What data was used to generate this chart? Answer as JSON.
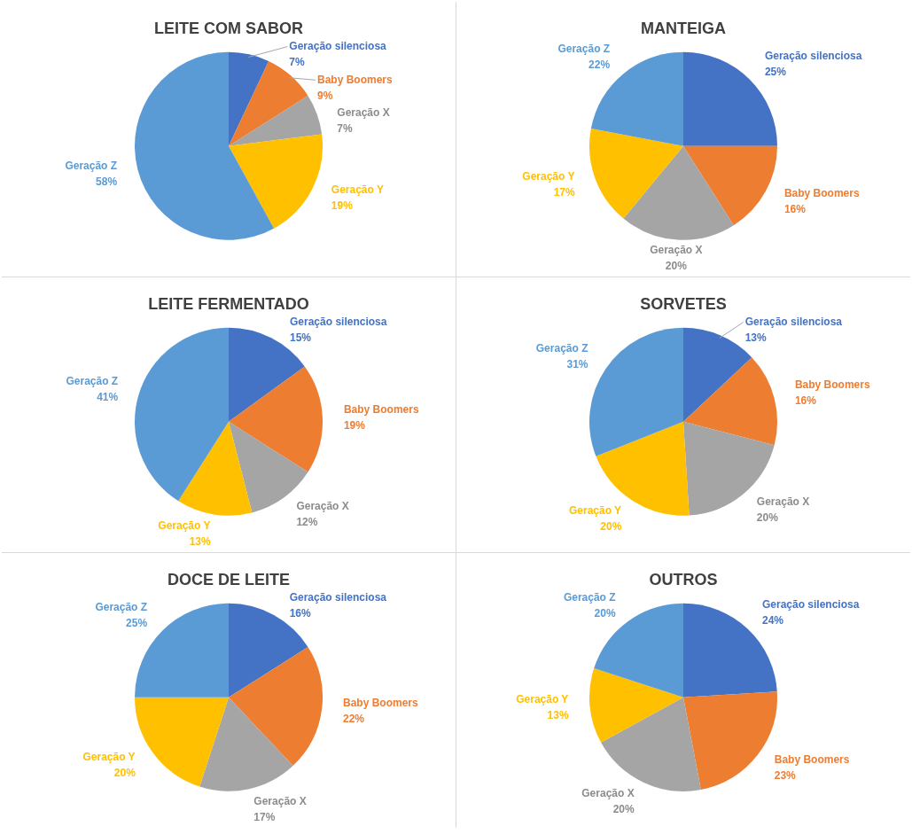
{
  "chart_data": [
    {
      "type": "pie",
      "title": "LEITE COM SABOR",
      "categories": [
        "Geração silenciosa",
        "Baby Boomers",
        "Geração X",
        "Geração Y",
        "Geração Z"
      ],
      "values": [
        7,
        9,
        7,
        19,
        58
      ],
      "value_labels": [
        "7%",
        "9%",
        "7%",
        "19%",
        "58%"
      ],
      "colors": [
        "#4472c4",
        "#ed7d31",
        "#a5a5a5",
        "#ffc000",
        "#5b9bd5"
      ],
      "legend": false
    },
    {
      "type": "pie",
      "title": "MANTEIGA",
      "categories": [
        "Geração silenciosa",
        "Baby Boomers",
        "Geração X",
        "Geração Y",
        "Geração Z"
      ],
      "values": [
        25,
        16,
        20,
        17,
        22
      ],
      "value_labels": [
        "25%",
        "16%",
        "20%",
        "17%",
        "22%"
      ],
      "colors": [
        "#4472c4",
        "#ed7d31",
        "#a5a5a5",
        "#ffc000",
        "#5b9bd5"
      ],
      "legend": false
    },
    {
      "type": "pie",
      "title": "LEITE FERMENTADO",
      "categories": [
        "Geração silenciosa",
        "Baby Boomers",
        "Geração X",
        "Geração Y",
        "Geração Z"
      ],
      "values": [
        15,
        19,
        12,
        13,
        41
      ],
      "value_labels": [
        "15%",
        "19%",
        "12%",
        "13%",
        "41%"
      ],
      "colors": [
        "#4472c4",
        "#ed7d31",
        "#a5a5a5",
        "#ffc000",
        "#5b9bd5"
      ],
      "legend": false
    },
    {
      "type": "pie",
      "title": "SORVETES",
      "categories": [
        "Geração silenciosa",
        "Baby Boomers",
        "Geração X",
        "Geração Y",
        "Geração Z"
      ],
      "values": [
        13,
        16,
        20,
        20,
        31
      ],
      "value_labels": [
        "13%",
        "16%",
        "20%",
        "20%",
        "31%"
      ],
      "colors": [
        "#4472c4",
        "#ed7d31",
        "#a5a5a5",
        "#ffc000",
        "#5b9bd5"
      ],
      "legend": false
    },
    {
      "type": "pie",
      "title": "DOCE DE LEITE",
      "categories": [
        "Geração silenciosa",
        "Baby Boomers",
        "Geração X",
        "Geração Y",
        "Geração Z"
      ],
      "values": [
        16,
        22,
        17,
        20,
        25
      ],
      "value_labels": [
        "16%",
        "22%",
        "17%",
        "20%",
        "25%"
      ],
      "colors": [
        "#4472c4",
        "#ed7d31",
        "#a5a5a5",
        "#ffc000",
        "#5b9bd5"
      ],
      "legend": false
    },
    {
      "type": "pie",
      "title": "OUTROS",
      "categories": [
        "Geração silenciosa",
        "Baby Boomers",
        "Geração X",
        "Geração Y",
        "Geração Z"
      ],
      "values": [
        24,
        23,
        20,
        13,
        20
      ],
      "value_labels": [
        "24%",
        "23%",
        "20%",
        "13%",
        "20%"
      ],
      "colors": [
        "#4472c4",
        "#ed7d31",
        "#a5a5a5",
        "#ffc000",
        "#5b9bd5"
      ],
      "legend": false
    }
  ]
}
